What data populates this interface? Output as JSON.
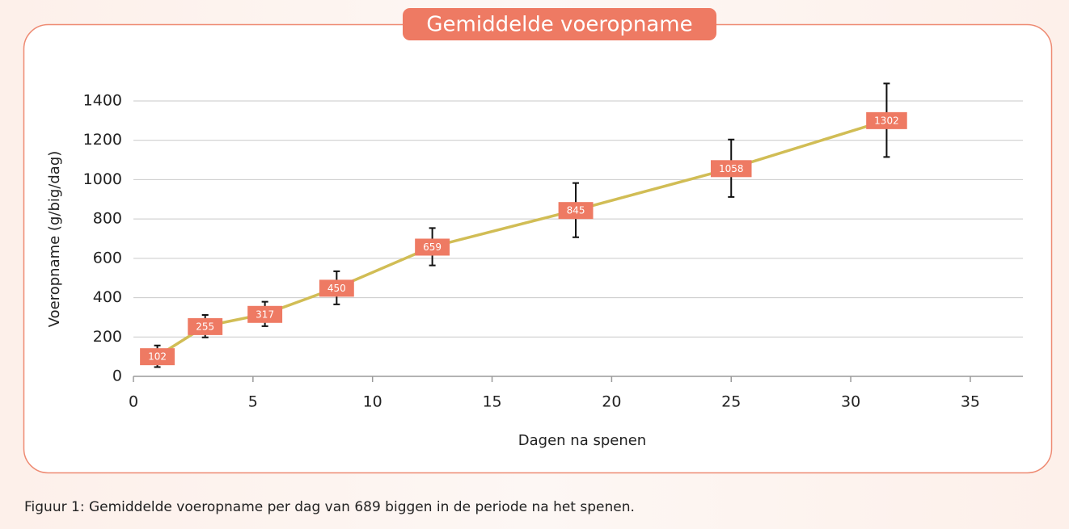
{
  "chart_data": {
    "type": "line",
    "title": "Gemiddelde voeropname",
    "caption": "Figuur 1: Gemiddelde voeropname per dag van 689 biggen in de periode na het spenen.",
    "x_label": "Dagen na spenen",
    "y_label": "Voeropname (g/big/dag)",
    "x": [
      1,
      3,
      5.5,
      8.5,
      12.5,
      18.5,
      25,
      31.5
    ],
    "values": [
      102,
      255,
      317,
      450,
      659,
      845,
      1058,
      1302
    ],
    "errors": [
      55,
      57,
      62,
      84,
      95,
      138,
      146,
      187
    ],
    "color": "#d1bd55",
    "xlim": [
      0,
      37.2
    ],
    "xticks": [
      0,
      5,
      10,
      15,
      20,
      25,
      30,
      35
    ],
    "ylim": [
      0,
      1400
    ],
    "yticks": [
      0,
      200,
      400,
      600,
      800,
      1000,
      1200,
      1400
    ],
    "grid": true
  }
}
